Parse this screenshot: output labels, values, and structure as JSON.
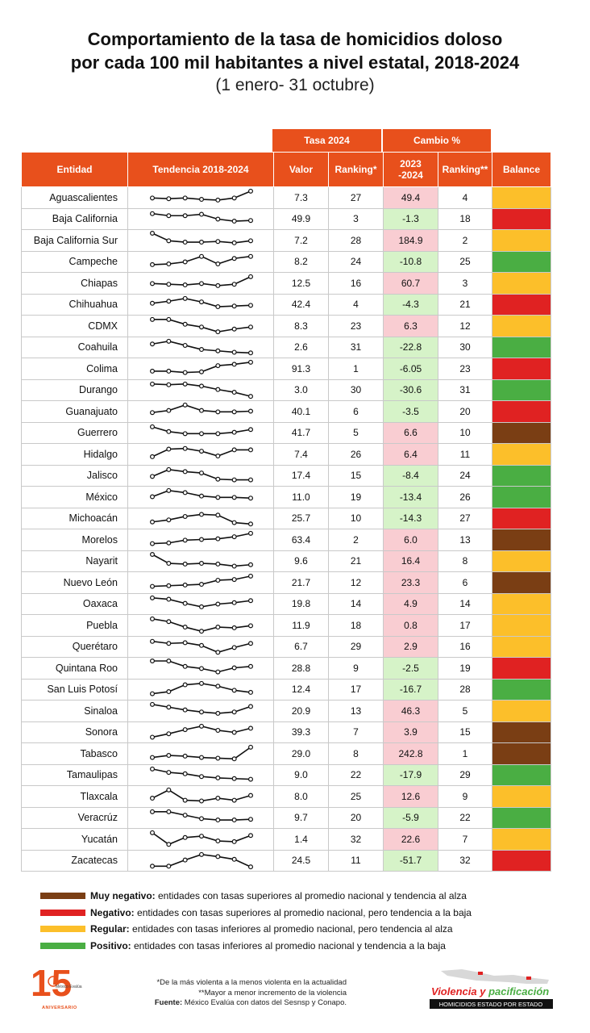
{
  "header": {
    "title_line1": "Comportamiento de la tasa de homicidios doloso",
    "title_line2": "por cada 100 mil habitantes a nivel estatal, 2018-2024",
    "subtitle": "(1 enero- 31 octubre)"
  },
  "group_headers": {
    "tasa": "Tasa 2024",
    "cambio": "Cambio %"
  },
  "columns": {
    "entidad": "Entidad",
    "tendencia": "Tendencia 2018-2024",
    "valor": "Valor",
    "ranking": "Ranking*",
    "change_a": "2023",
    "change_b": "-2024",
    "ranking2": "Ranking**",
    "balance": "Balance"
  },
  "colors": {
    "header": "#e8501c",
    "muy_negativo": "#7a3e14",
    "negativo": "#e02222",
    "regular": "#fcbf2a",
    "positivo": "#4aae43",
    "cell_increase": "#f9cdd2",
    "cell_decrease": "#d6f3c8"
  },
  "chart_data": {
    "type": "table",
    "title": "Comportamiento de la tasa de homicidios doloso por cada 100 mil habitantes a nivel estatal, 2018-2024",
    "sparkline_years": [
      2018,
      2019,
      2020,
      2021,
      2022,
      2023,
      2024
    ],
    "rows": [
      {
        "entidad": "Aguascalientes",
        "valor": "7.3",
        "ranking": "27",
        "cambio": "49.4",
        "ranking2": "4",
        "balance": "regular",
        "trend": [
          0.45,
          0.4,
          0.45,
          0.35,
          0.3,
          0.45,
          0.95
        ]
      },
      {
        "entidad": "Baja California",
        "valor": "49.9",
        "ranking": "3",
        "cambio": "-1.3",
        "ranking2": "18",
        "balance": "negativo",
        "trend": [
          0.9,
          0.75,
          0.75,
          0.85,
          0.5,
          0.35,
          0.4
        ]
      },
      {
        "entidad": "Baja California Sur",
        "valor": "7.2",
        "ranking": "28",
        "cambio": "184.9",
        "ranking2": "2",
        "balance": "regular",
        "trend": [
          1.0,
          0.45,
          0.35,
          0.35,
          0.4,
          0.3,
          0.45
        ]
      },
      {
        "entidad": "Campeche",
        "valor": "8.2",
        "ranking": "24",
        "cambio": "-10.8",
        "ranking2": "25",
        "balance": "positivo",
        "trend": [
          0.3,
          0.35,
          0.5,
          0.9,
          0.35,
          0.75,
          0.9
        ]
      },
      {
        "entidad": "Chiapas",
        "valor": "12.5",
        "ranking": "16",
        "cambio": "60.7",
        "ranking2": "3",
        "balance": "regular",
        "trend": [
          0.45,
          0.4,
          0.35,
          0.45,
          0.3,
          0.4,
          0.95
        ]
      },
      {
        "entidad": "Chihuahua",
        "valor": "42.4",
        "ranking": "4",
        "cambio": "-4.3",
        "ranking2": "21",
        "balance": "negativo",
        "trend": [
          0.6,
          0.75,
          0.95,
          0.7,
          0.35,
          0.4,
          0.45
        ]
      },
      {
        "entidad": "CDMX",
        "valor": "8.3",
        "ranking": "23",
        "cambio": "6.3",
        "ranking2": "12",
        "balance": "regular",
        "trend": [
          0.95,
          0.95,
          0.6,
          0.4,
          0.05,
          0.25,
          0.4
        ]
      },
      {
        "entidad": "Coahuila",
        "valor": "2.6",
        "ranking": "31",
        "cambio": "-22.8",
        "ranking2": "30",
        "balance": "positivo",
        "trend": [
          0.75,
          0.95,
          0.65,
          0.35,
          0.25,
          0.15,
          0.1
        ]
      },
      {
        "entidad": "Colima",
        "valor": "91.3",
        "ranking": "1",
        "cambio": "-6.05",
        "ranking2": "23",
        "balance": "negativo",
        "trend": [
          0.3,
          0.3,
          0.2,
          0.25,
          0.7,
          0.8,
          0.95
        ]
      },
      {
        "entidad": "Durango",
        "valor": "3.0",
        "ranking": "30",
        "cambio": "-30.6",
        "ranking2": "31",
        "balance": "positivo",
        "trend": [
          0.95,
          0.9,
          0.95,
          0.8,
          0.55,
          0.35,
          0.05
        ]
      },
      {
        "entidad": "Guanajuato",
        "valor": "40.1",
        "ranking": "6",
        "cambio": "-3.5",
        "ranking2": "20",
        "balance": "negativo",
        "trend": [
          0.4,
          0.55,
          0.95,
          0.55,
          0.45,
          0.45,
          0.5
        ]
      },
      {
        "entidad": "Guerrero",
        "valor": "41.7",
        "ranking": "5",
        "cambio": "6.6",
        "ranking2": "10",
        "balance": "muy_negativo",
        "trend": [
          0.95,
          0.6,
          0.45,
          0.45,
          0.45,
          0.55,
          0.75
        ]
      },
      {
        "entidad": "Hidalgo",
        "valor": "7.4",
        "ranking": "26",
        "cambio": "6.4",
        "ranking2": "11",
        "balance": "regular",
        "trend": [
          0.3,
          0.85,
          0.9,
          0.7,
          0.35,
          0.8,
          0.8
        ]
      },
      {
        "entidad": "Jalisco",
        "valor": "17.4",
        "ranking": "15",
        "cambio": "-8.4",
        "ranking2": "24",
        "balance": "positivo",
        "trend": [
          0.45,
          0.95,
          0.8,
          0.7,
          0.25,
          0.2,
          0.2
        ]
      },
      {
        "entidad": "México",
        "valor": "11.0",
        "ranking": "19",
        "cambio": "-13.4",
        "ranking2": "26",
        "balance": "positivo",
        "trend": [
          0.5,
          0.95,
          0.8,
          0.55,
          0.45,
          0.45,
          0.4
        ]
      },
      {
        "entidad": "Michoacán",
        "valor": "25.7",
        "ranking": "10",
        "cambio": "-14.3",
        "ranking2": "27",
        "balance": "negativo",
        "trend": [
          0.25,
          0.4,
          0.65,
          0.8,
          0.75,
          0.2,
          0.1
        ]
      },
      {
        "entidad": "Morelos",
        "valor": "63.4",
        "ranking": "2",
        "cambio": "6.0",
        "ranking2": "13",
        "balance": "muy_negativo",
        "trend": [
          0.2,
          0.25,
          0.45,
          0.5,
          0.55,
          0.7,
          0.95
        ]
      },
      {
        "entidad": "Nayarit",
        "valor": "9.6",
        "ranking": "21",
        "cambio": "16.4",
        "ranking2": "8",
        "balance": "regular",
        "trend": [
          1.0,
          0.35,
          0.3,
          0.35,
          0.3,
          0.15,
          0.25
        ]
      },
      {
        "entidad": "Nuevo León",
        "valor": "21.7",
        "ranking": "12",
        "cambio": "23.3",
        "ranking2": "6",
        "balance": "muy_negativo",
        "trend": [
          0.2,
          0.25,
          0.3,
          0.35,
          0.65,
          0.7,
          0.95
        ]
      },
      {
        "entidad": "Oaxaca",
        "valor": "19.8",
        "ranking": "14",
        "cambio": "4.9",
        "ranking2": "14",
        "balance": "regular",
        "trend": [
          0.95,
          0.85,
          0.55,
          0.3,
          0.5,
          0.6,
          0.75
        ]
      },
      {
        "entidad": "Puebla",
        "valor": "11.9",
        "ranking": "18",
        "cambio": "0.8",
        "ranking2": "17",
        "balance": "regular",
        "trend": [
          0.95,
          0.75,
          0.35,
          0.05,
          0.35,
          0.3,
          0.45
        ]
      },
      {
        "entidad": "Querétaro",
        "valor": "6.7",
        "ranking": "29",
        "cambio": "2.9",
        "ranking2": "16",
        "balance": "regular",
        "trend": [
          0.9,
          0.75,
          0.8,
          0.6,
          0.1,
          0.45,
          0.75
        ]
      },
      {
        "entidad": "Quintana Roo",
        "valor": "28.8",
        "ranking": "9",
        "cambio": "-2.5",
        "ranking2": "19",
        "balance": "negativo",
        "trend": [
          1.0,
          1.0,
          0.6,
          0.45,
          0.2,
          0.5,
          0.6
        ]
      },
      {
        "entidad": "San Luis Potosí",
        "valor": "12.4",
        "ranking": "17",
        "cambio": "-16.7",
        "ranking2": "28",
        "balance": "positivo",
        "trend": [
          0.2,
          0.35,
          0.85,
          0.95,
          0.75,
          0.45,
          0.3
        ]
      },
      {
        "entidad": "Sinaloa",
        "valor": "20.9",
        "ranking": "13",
        "cambio": "46.3",
        "ranking2": "5",
        "balance": "regular",
        "trend": [
          0.95,
          0.75,
          0.55,
          0.4,
          0.3,
          0.4,
          0.8
        ]
      },
      {
        "entidad": "Sonora",
        "valor": "39.3",
        "ranking": "7",
        "cambio": "3.9",
        "ranking2": "15",
        "balance": "muy_negativo",
        "trend": [
          0.15,
          0.4,
          0.7,
          0.95,
          0.65,
          0.5,
          0.8
        ]
      },
      {
        "entidad": "Tabasco",
        "valor": "29.0",
        "ranking": "8",
        "cambio": "242.8",
        "ranking2": "1",
        "balance": "muy_negativo",
        "trend": [
          0.2,
          0.35,
          0.3,
          0.2,
          0.15,
          0.1,
          0.95
        ]
      },
      {
        "entidad": "Tamaulipas",
        "valor": "9.0",
        "ranking": "22",
        "cambio": "-17.9",
        "ranking2": "29",
        "balance": "positivo",
        "trend": [
          0.95,
          0.7,
          0.6,
          0.4,
          0.3,
          0.25,
          0.2
        ]
      },
      {
        "entidad": "Tlaxcala",
        "valor": "8.0",
        "ranking": "25",
        "cambio": "12.6",
        "ranking2": "9",
        "balance": "regular",
        "trend": [
          0.35,
          0.95,
          0.2,
          0.15,
          0.35,
          0.2,
          0.55
        ]
      },
      {
        "entidad": "Veracrúz",
        "valor": "9.7",
        "ranking": "20",
        "cambio": "-5.9",
        "ranking2": "22",
        "balance": "positivo",
        "trend": [
          0.95,
          0.95,
          0.7,
          0.45,
          0.35,
          0.35,
          0.4
        ]
      },
      {
        "entidad": "Yucatán",
        "valor": "1.4",
        "ranking": "32",
        "cambio": "22.6",
        "ranking2": "7",
        "balance": "regular",
        "trend": [
          0.95,
          0.1,
          0.6,
          0.7,
          0.35,
          0.3,
          0.75
        ]
      },
      {
        "entidad": "Zacatecas",
        "valor": "24.5",
        "ranking": "11",
        "cambio": "-51.7",
        "ranking2": "32",
        "balance": "negativo",
        "trend": [
          0.1,
          0.1,
          0.55,
          0.95,
          0.8,
          0.6,
          0.05
        ]
      }
    ]
  },
  "legend": [
    {
      "key": "muy_negativo",
      "label": "Muy negativo:",
      "text": " entidades con tasas superiores al promedio nacional y tendencia al alza"
    },
    {
      "key": "negativo",
      "label": "Negativo:",
      "text": " entidades con tasas superiores al promedio nacional, pero tendencia a la baja"
    },
    {
      "key": "regular",
      "label": "Regular:",
      "text": " entidades con tasas inferiores al promedio nacional, pero tendencia al alza"
    },
    {
      "key": "positivo",
      "label": "Positivo:",
      "text": " entidades con tasas inferiores al promedio nacional y tendencia a la baja"
    }
  ],
  "footnotes": {
    "note1": "*De la más violenta a la menos violenta en la actualidad",
    "note2": "**Mayor a menor incremento de la violencia",
    "source_label": "Fuente:",
    "source_text": " México Evalúa con datos del Sesnsp y Conapo."
  },
  "logos": {
    "left_number": "15",
    "left_org": "México Evalúa",
    "left_caption": "ANIVERSARIO",
    "right_title_a": "Violencia",
    "right_title_amp": " y ",
    "right_title_b": "pacificación",
    "right_sub": "HOMICIDIOS ESTADO POR ESTADO"
  }
}
